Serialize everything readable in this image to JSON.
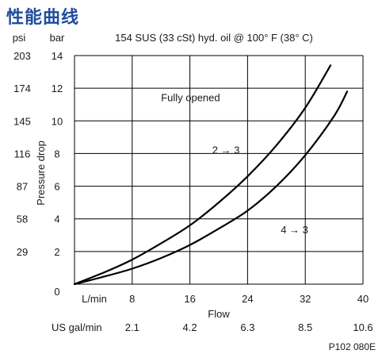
{
  "page_heading": "性能曲线",
  "figure_code": "P102 080E",
  "colors": {
    "heading": "#1f4e9c",
    "curve": "#000000",
    "grid": "#000000"
  },
  "chart_data": {
    "type": "line",
    "title": "154 SUS (33 cSt) hyd. oil @ 100° F (38° C)",
    "xlabel": "Flow",
    "ylabel": "Pressure drop",
    "x_unit_primary": "L/min",
    "x_unit_secondary": "US gal/min",
    "y_unit_primary": "bar",
    "y_unit_secondary": "psi",
    "xlim": [
      0,
      40
    ],
    "ylim": [
      0,
      14
    ],
    "grid": true,
    "x_ticks": [
      {
        "value": 8,
        "label": "8"
      },
      {
        "value": 16,
        "label": "16"
      },
      {
        "value": 24,
        "label": "24"
      },
      {
        "value": 32,
        "label": "32"
      },
      {
        "value": 40,
        "label": "40"
      }
    ],
    "x_ticks_secondary": [
      {
        "value": 8,
        "label": "2.1"
      },
      {
        "value": 16,
        "label": "4.2"
      },
      {
        "value": 24,
        "label": "6.3"
      },
      {
        "value": 32,
        "label": "8.5"
      },
      {
        "value": 40,
        "label": "10.6"
      }
    ],
    "y_ticks": [
      {
        "value": 0,
        "label": "0"
      },
      {
        "value": 2,
        "label": "2"
      },
      {
        "value": 4,
        "label": "4"
      },
      {
        "value": 6,
        "label": "6"
      },
      {
        "value": 8,
        "label": "8"
      },
      {
        "value": 10,
        "label": "10"
      },
      {
        "value": 12,
        "label": "12"
      },
      {
        "value": 14,
        "label": "14"
      }
    ],
    "y_ticks_secondary": [
      {
        "value": 2,
        "label": "29"
      },
      {
        "value": 4,
        "label": "58"
      },
      {
        "value": 6,
        "label": "87"
      },
      {
        "value": 8,
        "label": "116"
      },
      {
        "value": 10,
        "label": "145"
      },
      {
        "value": 12,
        "label": "174"
      },
      {
        "value": 14,
        "label": "203"
      }
    ],
    "series": [
      {
        "label": "2 → 3",
        "x": [
          0,
          4,
          8,
          12,
          16,
          20,
          24,
          28,
          32,
          35.5
        ],
        "y": [
          0,
          0.7,
          1.5,
          2.5,
          3.6,
          5.0,
          6.6,
          8.5,
          10.8,
          13.4
        ],
        "label_at": [
          21,
          8
        ]
      },
      {
        "label": "4 → 3",
        "x": [
          0,
          4,
          8,
          12,
          16,
          20,
          24,
          28,
          32,
          36,
          37.8
        ],
        "y": [
          0,
          0.45,
          0.95,
          1.6,
          2.4,
          3.4,
          4.5,
          6.0,
          7.9,
          10.3,
          11.8
        ],
        "label_at": [
          30.5,
          3.1
        ]
      }
    ],
    "annotations": [
      {
        "text": "Fully opened",
        "at": [
          12,
          11.2
        ]
      }
    ]
  }
}
